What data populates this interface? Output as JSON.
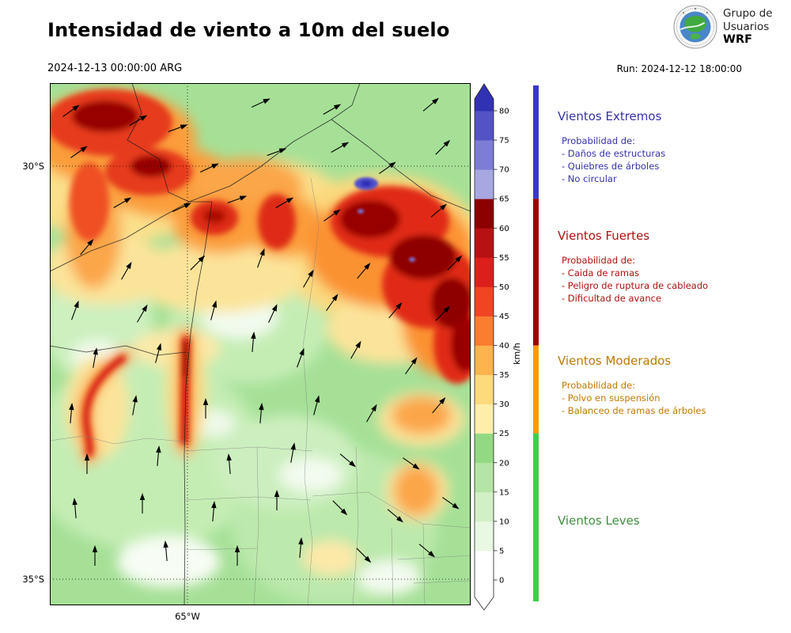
{
  "header": {
    "title": "Intensidad de viento a 10m del suelo",
    "valid_time": "2024-12-13 00:00:00 ARG",
    "run_label": "Run: 2024-12-12 18:00:00",
    "logo": {
      "line1": "Grupo de",
      "line2": "Usuarios",
      "line3": "WRF"
    }
  },
  "map": {
    "lat_ticks": [
      {
        "label": "30°S"
      },
      {
        "label": "35°S"
      }
    ],
    "lon_ticks": [
      {
        "label": "65°W"
      }
    ],
    "arrows": [
      [
        27,
        35,
        -35
      ],
      [
        112,
        47,
        -30
      ],
      [
        162,
        57,
        -20
      ],
      [
        267,
        25,
        -25
      ],
      [
        357,
        33,
        -30
      ],
      [
        482,
        27,
        -40
      ],
      [
        37,
        87,
        -35
      ],
      [
        202,
        107,
        -25
      ],
      [
        287,
        87,
        -20
      ],
      [
        367,
        81,
        -30
      ],
      [
        427,
        107,
        -35
      ],
      [
        497,
        81,
        -45
      ],
      [
        92,
        151,
        -30
      ],
      [
        167,
        157,
        -25
      ],
      [
        237,
        147,
        -20
      ],
      [
        297,
        151,
        -30
      ],
      [
        357,
        167,
        -35
      ],
      [
        492,
        161,
        -40
      ],
      [
        47,
        207,
        -50
      ],
      [
        97,
        237,
        -60
      ],
      [
        187,
        227,
        -45
      ],
      [
        267,
        221,
        -70
      ],
      [
        327,
        247,
        -60
      ],
      [
        397,
        237,
        -50
      ],
      [
        512,
        227,
        -45
      ],
      [
        32,
        287,
        -70
      ],
      [
        117,
        291,
        -60
      ],
      [
        207,
        287,
        -75
      ],
      [
        282,
        291,
        -65
      ],
      [
        357,
        277,
        -55
      ],
      [
        437,
        287,
        -50
      ],
      [
        497,
        291,
        -45
      ],
      [
        57,
        347,
        -80
      ],
      [
        137,
        341,
        -75
      ],
      [
        257,
        327,
        -85
      ],
      [
        317,
        347,
        -70
      ],
      [
        387,
        337,
        -60
      ],
      [
        457,
        357,
        -55
      ],
      [
        27,
        417,
        -85
      ],
      [
        107,
        407,
        -80
      ],
      [
        197,
        411,
        -90
      ],
      [
        267,
        417,
        -85
      ],
      [
        337,
        407,
        -75
      ],
      [
        407,
        417,
        -60
      ],
      [
        492,
        407,
        -50
      ],
      [
        47,
        481,
        -90
      ],
      [
        137,
        471,
        -85
      ],
      [
        227,
        481,
        -95
      ],
      [
        307,
        467,
        -80
      ],
      [
        377,
        477,
        40
      ],
      [
        457,
        481,
        35
      ],
      [
        32,
        537,
        -95
      ],
      [
        117,
        531,
        -90
      ],
      [
        207,
        541,
        -85
      ],
      [
        287,
        527,
        -90
      ],
      [
        367,
        537,
        45
      ],
      [
        437,
        547,
        40
      ],
      [
        507,
        531,
        35
      ],
      [
        57,
        597,
        -90
      ],
      [
        147,
        591,
        -95
      ],
      [
        237,
        597,
        -90
      ],
      [
        317,
        587,
        -85
      ],
      [
        397,
        597,
        45
      ],
      [
        477,
        591,
        40
      ]
    ]
  },
  "colorbar": {
    "unit": "km/h",
    "tick_values": [
      0,
      5,
      10,
      15,
      20,
      25,
      30,
      35,
      40,
      45,
      50,
      55,
      60,
      65,
      70,
      75,
      80
    ],
    "segment_colors": [
      "#ffffff",
      "#e9f8e2",
      "#d2f0c6",
      "#b5e5a6",
      "#93d983",
      "#fdeeaa",
      "#fdda7c",
      "#fdb44d",
      "#fa7d30",
      "#f04422",
      "#dc1f1b",
      "#b81114",
      "#8c0000",
      "#a7a7e2",
      "#7d7dd6",
      "#5353c6"
    ],
    "top_tip_color": "#3131b4",
    "bottom_tip_color": "#ffffff",
    "categories": [
      {
        "label": "Vientos Leves",
        "color": "#3ecf48",
        "from": 0,
        "to": 25
      },
      {
        "label": "Vientos Moderados",
        "color": "#ff9a00",
        "from": 25,
        "to": 40
      },
      {
        "label": "Vientos Fuertes",
        "color": "#9e0000",
        "from": 40,
        "to": 65
      },
      {
        "label": "Vientos Extremos",
        "color": "#3939c8",
        "from": 65,
        "to": 80
      }
    ]
  },
  "legend": {
    "sections": [
      {
        "title": "Vientos Extremos",
        "color": "#3333aa",
        "prob_label": "Probabilidad de:",
        "items": [
          "- Daños de estructuras",
          "- Quiebres de árboles",
          "- No circular"
        ]
      },
      {
        "title": "Vientos Fuertes",
        "color": "#b01010",
        "prob_label": "Probabilidad de:",
        "items": [
          "- Caida de ramas",
          "- Peligro de ruptura de cableado",
          "- Dificultad de avance"
        ]
      },
      {
        "title": "Vientos Moderados",
        "color": "#bf7a00",
        "prob_label": "Probabilidad de:",
        "items": [
          "- Polvo en suspensión",
          "- Balanceo de ramas de árboles"
        ]
      },
      {
        "title": "Vientos Leves",
        "color": "#3f8f3f",
        "prob_label": "",
        "items": []
      }
    ]
  }
}
